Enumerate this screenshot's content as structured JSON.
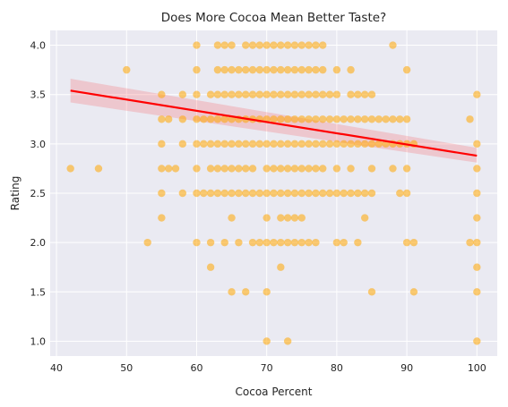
{
  "chart_data": {
    "type": "scatter",
    "title": "Does More Cocoa Mean Better Taste?",
    "xlabel": "Cocoa Percent",
    "ylabel": "Rating",
    "xlim": [
      39.1,
      102.9
    ],
    "ylim": [
      0.85,
      4.15
    ],
    "xticks": [
      40,
      50,
      60,
      70,
      80,
      90,
      100
    ],
    "yticks": [
      1.0,
      1.5,
      2.0,
      2.5,
      3.0,
      3.5,
      4.0
    ],
    "grid": true,
    "background": "#eaeaf2",
    "point_color": "#ffa500",
    "point_alpha": 0.55,
    "regression": {
      "color": "#ff0000",
      "band_color": "#ff0000",
      "x": [
        42,
        100
      ],
      "y": [
        3.54,
        2.88
      ],
      "band_lower_left": 3.42,
      "band_upper_left": 3.66,
      "band_lower_right": 2.81,
      "band_upper_right": 2.96
    },
    "points": [
      [
        42,
        2.75
      ],
      [
        46,
        2.75
      ],
      [
        50,
        3.75
      ],
      [
        53,
        2.0
      ],
      [
        55,
        2.25
      ],
      [
        55,
        2.5
      ],
      [
        55,
        2.75
      ],
      [
        55,
        3.0
      ],
      [
        55,
        3.25
      ],
      [
        55,
        3.5
      ],
      [
        56,
        2.75
      ],
      [
        56,
        3.25
      ],
      [
        57,
        2.75
      ],
      [
        58,
        2.5
      ],
      [
        58,
        3.0
      ],
      [
        58,
        3.25
      ],
      [
        58,
        3.5
      ],
      [
        60,
        2.0
      ],
      [
        60,
        2.5
      ],
      [
        60,
        2.75
      ],
      [
        60,
        3.0
      ],
      [
        60,
        3.25
      ],
      [
        60,
        3.5
      ],
      [
        60,
        3.75
      ],
      [
        60,
        4.0
      ],
      [
        61,
        2.5
      ],
      [
        61,
        3.0
      ],
      [
        61,
        3.25
      ],
      [
        62,
        1.75
      ],
      [
        62,
        2.0
      ],
      [
        62,
        2.5
      ],
      [
        62,
        2.75
      ],
      [
        62,
        3.0
      ],
      [
        62,
        3.25
      ],
      [
        62,
        3.5
      ],
      [
        63,
        2.5
      ],
      [
        63,
        2.75
      ],
      [
        63,
        3.0
      ],
      [
        63,
        3.25
      ],
      [
        63,
        3.5
      ],
      [
        63,
        3.75
      ],
      [
        63,
        4.0
      ],
      [
        64,
        2.0
      ],
      [
        64,
        2.5
      ],
      [
        64,
        2.75
      ],
      [
        64,
        3.0
      ],
      [
        64,
        3.25
      ],
      [
        64,
        3.5
      ],
      [
        64,
        3.75
      ],
      [
        64,
        4.0
      ],
      [
        65,
        1.5
      ],
      [
        65,
        2.25
      ],
      [
        65,
        2.5
      ],
      [
        65,
        2.75
      ],
      [
        65,
        3.0
      ],
      [
        65,
        3.25
      ],
      [
        65,
        3.5
      ],
      [
        65,
        3.75
      ],
      [
        65,
        4.0
      ],
      [
        66,
        2.0
      ],
      [
        66,
        2.5
      ],
      [
        66,
        2.75
      ],
      [
        66,
        3.0
      ],
      [
        66,
        3.25
      ],
      [
        66,
        3.5
      ],
      [
        66,
        3.75
      ],
      [
        67,
        1.5
      ],
      [
        67,
        2.5
      ],
      [
        67,
        2.75
      ],
      [
        67,
        3.0
      ],
      [
        67,
        3.25
      ],
      [
        67,
        3.5
      ],
      [
        67,
        3.75
      ],
      [
        67,
        4.0
      ],
      [
        68,
        2.0
      ],
      [
        68,
        2.5
      ],
      [
        68,
        2.75
      ],
      [
        68,
        3.0
      ],
      [
        68,
        3.25
      ],
      [
        68,
        3.5
      ],
      [
        68,
        3.75
      ],
      [
        68,
        4.0
      ],
      [
        69,
        2.0
      ],
      [
        69,
        2.5
      ],
      [
        69,
        3.0
      ],
      [
        69,
        3.25
      ],
      [
        69,
        3.5
      ],
      [
        69,
        3.75
      ],
      [
        69,
        4.0
      ],
      [
        70,
        1.0
      ],
      [
        70,
        1.5
      ],
      [
        70,
        2.0
      ],
      [
        70,
        2.25
      ],
      [
        70,
        2.5
      ],
      [
        70,
        2.75
      ],
      [
        70,
        3.0
      ],
      [
        70,
        3.25
      ],
      [
        70,
        3.5
      ],
      [
        70,
        3.75
      ],
      [
        70,
        4.0
      ],
      [
        71,
        2.0
      ],
      [
        71,
        2.5
      ],
      [
        71,
        2.75
      ],
      [
        71,
        3.0
      ],
      [
        71,
        3.25
      ],
      [
        71,
        3.5
      ],
      [
        71,
        3.75
      ],
      [
        71,
        4.0
      ],
      [
        72,
        1.75
      ],
      [
        72,
        2.0
      ],
      [
        72,
        2.25
      ],
      [
        72,
        2.5
      ],
      [
        72,
        2.75
      ],
      [
        72,
        3.0
      ],
      [
        72,
        3.25
      ],
      [
        72,
        3.5
      ],
      [
        72,
        3.75
      ],
      [
        72,
        4.0
      ],
      [
        73,
        1.0
      ],
      [
        73,
        2.0
      ],
      [
        73,
        2.25
      ],
      [
        73,
        2.5
      ],
      [
        73,
        2.75
      ],
      [
        73,
        3.0
      ],
      [
        73,
        3.25
      ],
      [
        73,
        3.5
      ],
      [
        73,
        3.75
      ],
      [
        73,
        4.0
      ],
      [
        74,
        2.0
      ],
      [
        74,
        2.25
      ],
      [
        74,
        2.5
      ],
      [
        74,
        2.75
      ],
      [
        74,
        3.0
      ],
      [
        74,
        3.25
      ],
      [
        74,
        3.5
      ],
      [
        74,
        3.75
      ],
      [
        74,
        4.0
      ],
      [
        75,
        2.0
      ],
      [
        75,
        2.25
      ],
      [
        75,
        2.5
      ],
      [
        75,
        2.75
      ],
      [
        75,
        3.0
      ],
      [
        75,
        3.25
      ],
      [
        75,
        3.5
      ],
      [
        75,
        3.75
      ],
      [
        75,
        4.0
      ],
      [
        76,
        2.0
      ],
      [
        76,
        2.5
      ],
      [
        76,
        2.75
      ],
      [
        76,
        3.0
      ],
      [
        76,
        3.25
      ],
      [
        76,
        3.5
      ],
      [
        76,
        3.75
      ],
      [
        76,
        4.0
      ],
      [
        77,
        2.0
      ],
      [
        77,
        2.5
      ],
      [
        77,
        2.75
      ],
      [
        77,
        3.0
      ],
      [
        77,
        3.25
      ],
      [
        77,
        3.5
      ],
      [
        77,
        3.75
      ],
      [
        77,
        4.0
      ],
      [
        78,
        2.5
      ],
      [
        78,
        2.75
      ],
      [
        78,
        3.0
      ],
      [
        78,
        3.25
      ],
      [
        78,
        3.5
      ],
      [
        78,
        3.75
      ],
      [
        78,
        4.0
      ],
      [
        79,
        2.5
      ],
      [
        79,
        3.0
      ],
      [
        79,
        3.25
      ],
      [
        79,
        3.5
      ],
      [
        80,
        2.0
      ],
      [
        80,
        2.5
      ],
      [
        80,
        2.75
      ],
      [
        80,
        3.0
      ],
      [
        80,
        3.25
      ],
      [
        80,
        3.5
      ],
      [
        80,
        3.75
      ],
      [
        81,
        2.0
      ],
      [
        81,
        2.5
      ],
      [
        81,
        3.0
      ],
      [
        81,
        3.25
      ],
      [
        82,
        2.5
      ],
      [
        82,
        2.75
      ],
      [
        82,
        3.0
      ],
      [
        82,
        3.25
      ],
      [
        82,
        3.5
      ],
      [
        82,
        3.75
      ],
      [
        83,
        2.0
      ],
      [
        83,
        2.5
      ],
      [
        83,
        3.0
      ],
      [
        83,
        3.25
      ],
      [
        83,
        3.5
      ],
      [
        84,
        2.25
      ],
      [
        84,
        2.5
      ],
      [
        84,
        3.0
      ],
      [
        84,
        3.25
      ],
      [
        84,
        3.5
      ],
      [
        85,
        1.5
      ],
      [
        85,
        2.5
      ],
      [
        85,
        2.75
      ],
      [
        85,
        3.0
      ],
      [
        85,
        3.25
      ],
      [
        85,
        3.5
      ],
      [
        86,
        3.0
      ],
      [
        86,
        3.25
      ],
      [
        87,
        3.0
      ],
      [
        87,
        3.25
      ],
      [
        88,
        2.75
      ],
      [
        88,
        3.0
      ],
      [
        88,
        3.25
      ],
      [
        88,
        4.0
      ],
      [
        89,
        2.5
      ],
      [
        89,
        3.0
      ],
      [
        89,
        3.25
      ],
      [
        90,
        2.0
      ],
      [
        90,
        2.5
      ],
      [
        90,
        2.75
      ],
      [
        90,
        3.0
      ],
      [
        90,
        3.25
      ],
      [
        90,
        3.75
      ],
      [
        91,
        1.5
      ],
      [
        91,
        2.0
      ],
      [
        91,
        3.0
      ],
      [
        99,
        2.0
      ],
      [
        99,
        3.25
      ],
      [
        100,
        1.0
      ],
      [
        100,
        1.5
      ],
      [
        100,
        1.75
      ],
      [
        100,
        2.0
      ],
      [
        100,
        2.25
      ],
      [
        100,
        2.5
      ],
      [
        100,
        2.75
      ],
      [
        100,
        3.0
      ],
      [
        100,
        3.5
      ]
    ]
  }
}
